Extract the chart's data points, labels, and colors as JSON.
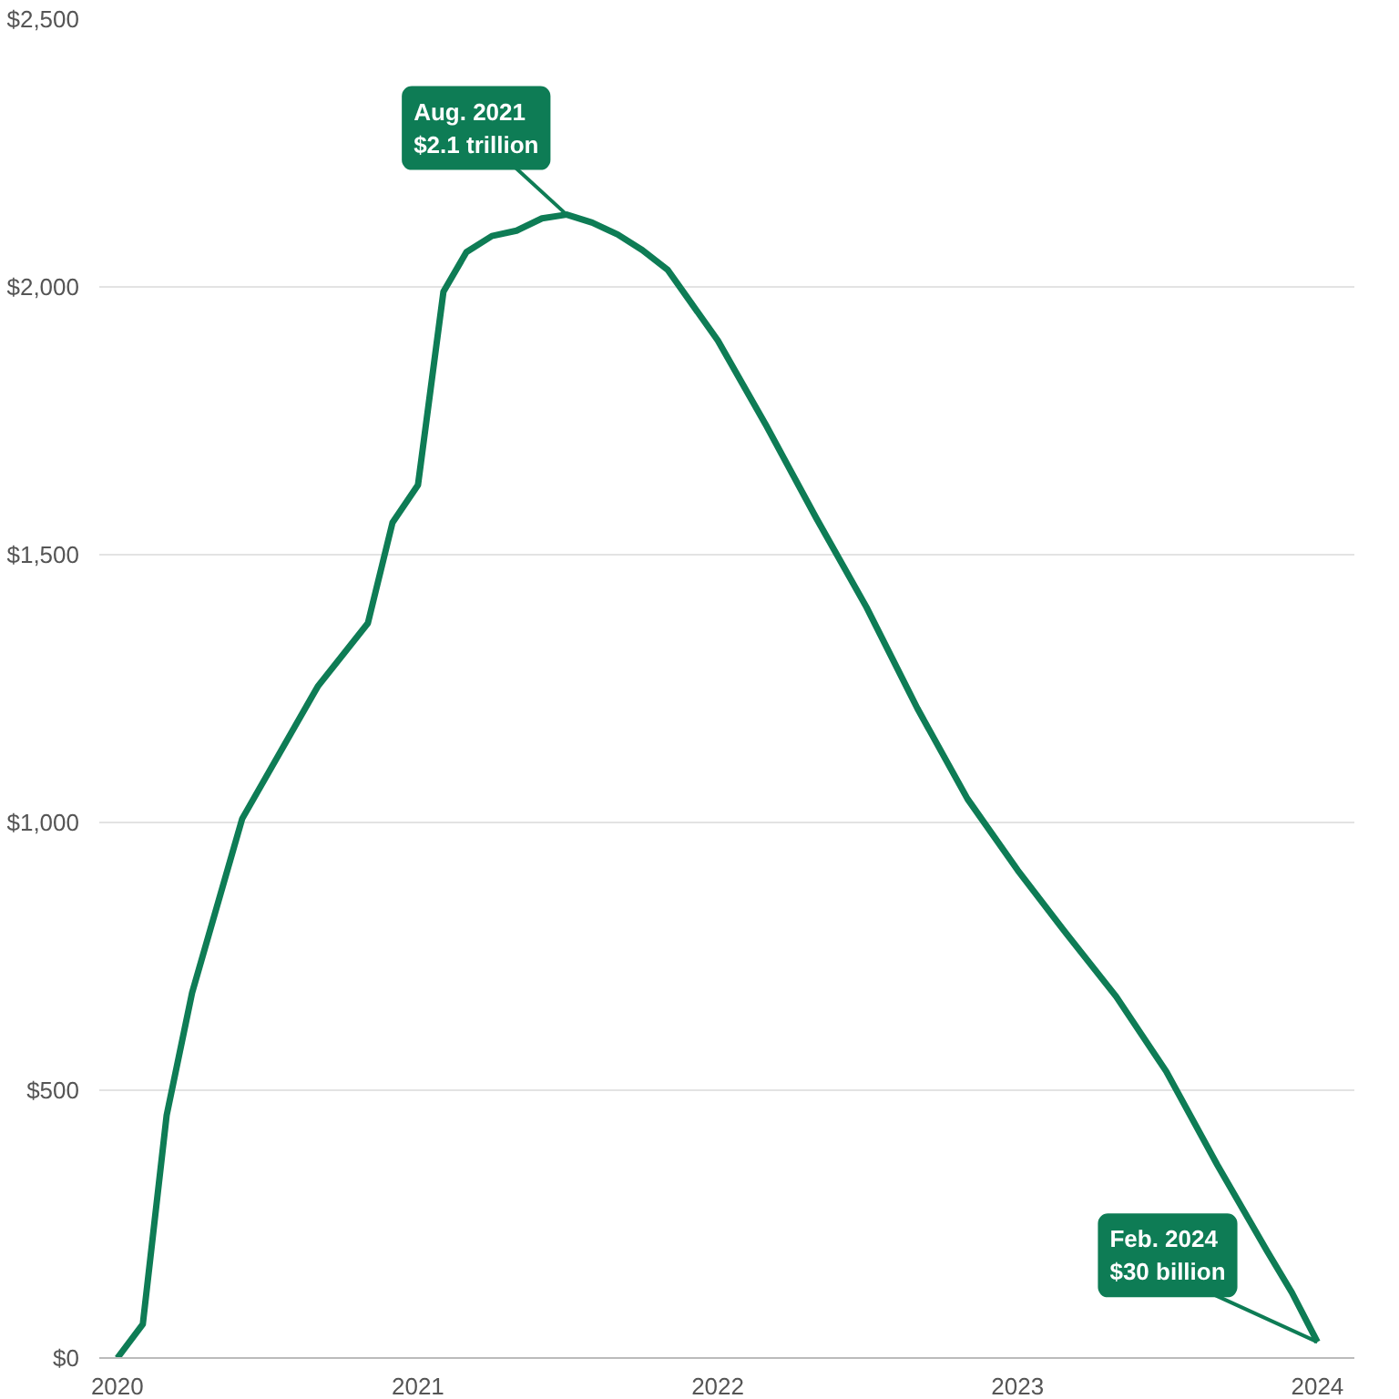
{
  "chart_data": {
    "type": "line",
    "x": [
      "2020-01",
      "2020-02",
      "2020-03",
      "2020-04",
      "2020-06",
      "2020-09",
      "2020-11",
      "2020-12",
      "2021-01",
      "2021-02",
      "2021-03",
      "2021-04",
      "2021-05",
      "2021-06",
      "2021-07",
      "2021-08",
      "2021-09",
      "2021-10",
      "2021-11",
      "2022-01",
      "2022-03",
      "2022-05",
      "2022-07",
      "2022-09",
      "2022-11",
      "2023-01",
      "2023-03",
      "2023-05",
      "2023-07",
      "2023-09",
      "2023-11",
      "2023-12",
      "2024-01"
    ],
    "series": [
      {
        "color": "#0e7c55",
        "values": [
          0,
          63,
          453,
          682,
          1007,
          1254,
          1372,
          1560,
          1630,
          1991,
          2065,
          2095,
          2105,
          2128,
          2135,
          2120,
          2098,
          2069,
          2032,
          1900,
          1741,
          1568,
          1402,
          1213,
          1044,
          911,
          793,
          675,
          535,
          361,
          199,
          122,
          30
        ]
      }
    ],
    "xlim": [
      "2019-12-10",
      "2024-02-15"
    ],
    "xticks": [
      {
        "value": "2020-01-01",
        "label": "2020"
      },
      {
        "value": "2021-01-01",
        "label": "2021"
      },
      {
        "value": "2022-01-01",
        "label": "2022"
      },
      {
        "value": "2023-01-01",
        "label": "2023"
      },
      {
        "value": "2024-01-01",
        "label": "2024"
      }
    ],
    "ylim": [
      0,
      2500
    ],
    "yticks": [
      {
        "value": 0,
        "label": "$0"
      },
      {
        "value": 500,
        "label": "$500"
      },
      {
        "value": 1000,
        "label": "$1,000"
      },
      {
        "value": 1500,
        "label": "$1,500"
      },
      {
        "value": 2000,
        "label": "$2,000"
      },
      {
        "value": 2500,
        "label": "$2,500"
      }
    ],
    "grid": "y",
    "marker": "none",
    "line_style": "solid",
    "annotations": [
      {
        "text": "Aug. 2021\n$2.1 trillion",
        "x": "2021-07",
        "y": 2135
      },
      {
        "text": "Feb. 2024\n$30 billion",
        "x": "2024-01",
        "y": 30
      }
    ]
  }
}
